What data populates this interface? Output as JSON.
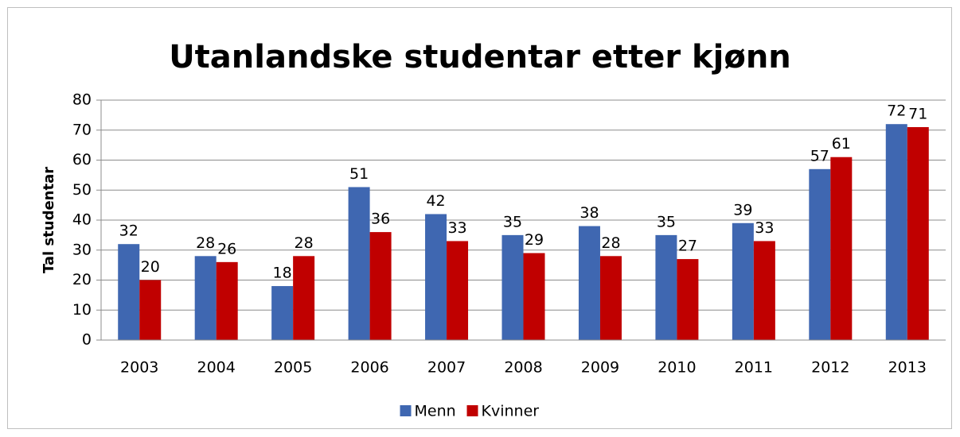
{
  "chart_data": {
    "type": "bar",
    "title": "Utanlandske studentar etter kjønn",
    "y_label": "Tal studentar",
    "categories": [
      "2003",
      "2004",
      "2005",
      "2006",
      "2007",
      "2008",
      "2009",
      "2010",
      "2011",
      "2012",
      "2013"
    ],
    "series": [
      {
        "name": "Menn",
        "color": "#3f67b1",
        "values": [
          32,
          28,
          18,
          51,
          42,
          35,
          38,
          35,
          39,
          57,
          72
        ]
      },
      {
        "name": "Kvinner",
        "color": "#c00000",
        "values": [
          20,
          26,
          28,
          36,
          33,
          29,
          28,
          27,
          33,
          61,
          71
        ]
      }
    ],
    "ylim": [
      0,
      80
    ],
    "yticks": [
      0,
      10,
      20,
      30,
      40,
      50,
      60,
      70,
      80
    ],
    "grid": true,
    "legend": "bottom"
  }
}
